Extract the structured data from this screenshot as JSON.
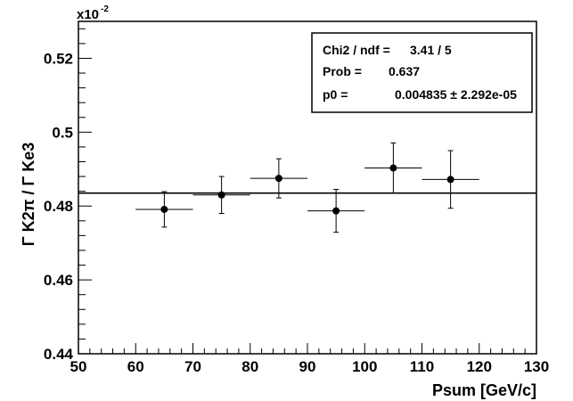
{
  "chart_data": {
    "type": "scatter",
    "title": "",
    "xlabel": "Psum [GeV/c]",
    "ylabel": "Γ K2π / Γ Ke3",
    "y_exponent_base": "x10",
    "y_exponent_power": "-2",
    "xlim": [
      50,
      130
    ],
    "ylim": [
      0.44,
      0.53
    ],
    "x_ticks": [
      50,
      60,
      70,
      80,
      90,
      100,
      110,
      120,
      130
    ],
    "x_tick_labels": [
      "50",
      "60",
      "70",
      "80",
      "90",
      "100",
      "110",
      "120",
      "130"
    ],
    "y_ticks": [
      0.44,
      0.46,
      0.48,
      0.5,
      0.52
    ],
    "y_tick_labels": [
      "0.44",
      "0.46",
      "0.48",
      "0.5",
      "0.52"
    ],
    "grid": false,
    "series": [
      {
        "x": [
          65,
          75,
          85,
          95,
          105,
          115
        ],
        "y": [
          0.4791,
          0.483,
          0.4875,
          0.4787,
          0.4903,
          0.4872
        ],
        "xerr": [
          5,
          5,
          5,
          5,
          5,
          5
        ],
        "yerr": [
          0.0048,
          0.005,
          0.0053,
          0.0058,
          0.0068,
          0.0078
        ]
      }
    ],
    "fit": {
      "type": "constant",
      "value": 0.4835
    },
    "stats_box": {
      "position": "top-right",
      "lines": [
        {
          "label": "Chi2 / ndf = ",
          "value": "3.41 / 5"
        },
        {
          "label": "Prob  = ",
          "value": "0.637"
        },
        {
          "label": "p0       = ",
          "value": "0.004835 ± 2.292e-05"
        }
      ]
    }
  }
}
